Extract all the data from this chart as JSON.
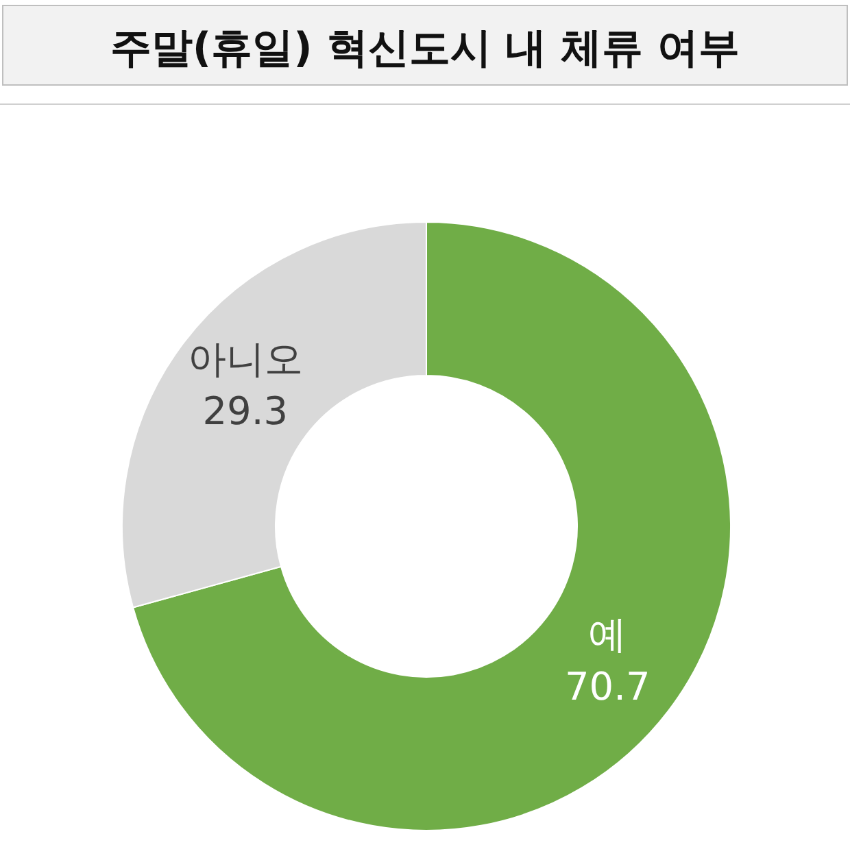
{
  "chart_data": {
    "type": "donut",
    "title": "주말(휴일) 혁신도시 내 체류 여부",
    "categories": [
      "예",
      "아니오"
    ],
    "values": [
      70.7,
      29.3
    ],
    "colors": [
      "#70ad47",
      "#d9d9d9"
    ],
    "data_labels": true
  }
}
